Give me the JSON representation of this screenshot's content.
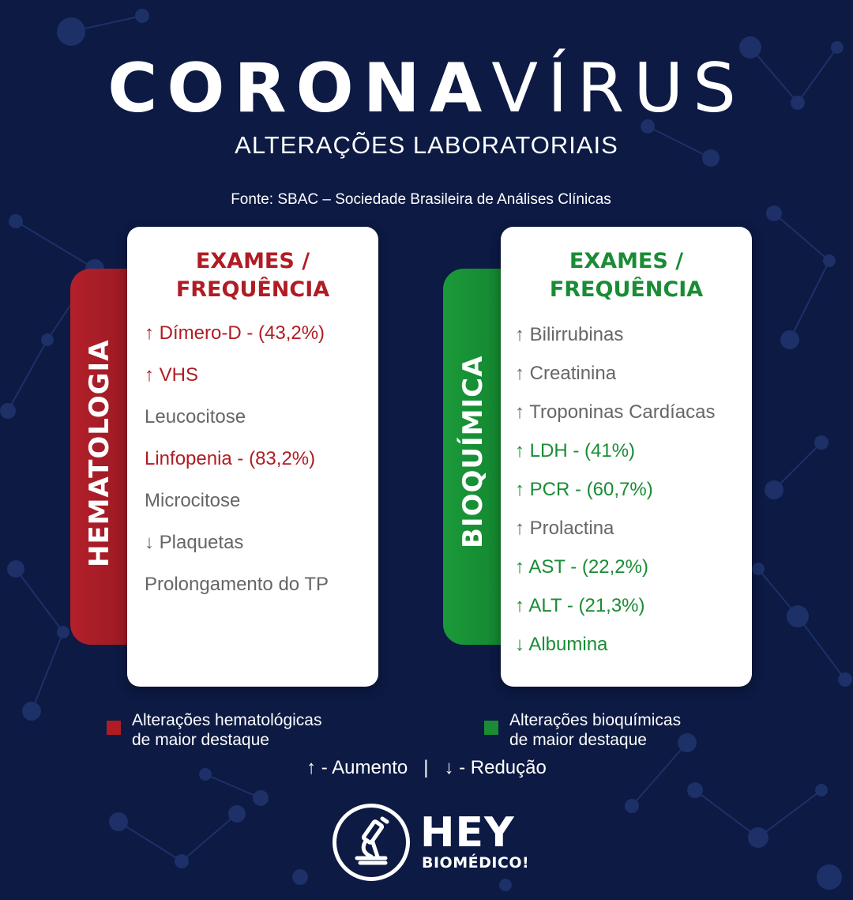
{
  "header": {
    "title_bold": "CORONA",
    "title_light": "VÍRUS",
    "subtitle": "ALTERAÇÕES LABORATORIAIS",
    "source": "Fonte: SBAC – Sociedade Brasileira de Análises Clínicas"
  },
  "hematologia": {
    "label": "HEMATOLOGIA",
    "heading_line1": "EXAMES /",
    "heading_line2": "FREQUÊNCIA",
    "items": [
      {
        "text": "↑ Dímero-D - (43,2%)",
        "highlight": true
      },
      {
        "text": "↑ VHS",
        "highlight": true
      },
      {
        "text": "Leucocitose",
        "highlight": false
      },
      {
        "text": "Linfopenia - (83,2%)",
        "highlight": true
      },
      {
        "text": "Microcitose",
        "highlight": false
      },
      {
        "text": "↓ Plaquetas",
        "highlight": false
      },
      {
        "text": "Prolongamento do TP",
        "highlight": false
      }
    ],
    "legend": [
      "Alterações hematológicas",
      "de maior destaque"
    ],
    "color": "#b01c24"
  },
  "bioquimica": {
    "label": "BIOQUÍMICA",
    "heading_line1": "EXAMES /",
    "heading_line2": "FREQUÊNCIA",
    "items": [
      {
        "text": "↑ Bilirrubinas",
        "highlight": false
      },
      {
        "text": "↑ Creatinina",
        "highlight": false
      },
      {
        "text": "↑ Troponinas Cardíacas",
        "highlight": false
      },
      {
        "text": "↑ LDH - (41%)",
        "highlight": true
      },
      {
        "text": "↑ PCR - (60,7%)",
        "highlight": true
      },
      {
        "text": "↑ Prolactina",
        "highlight": false
      },
      {
        "text": "↑ AST - (22,2%)",
        "highlight": true
      },
      {
        "text": "↑ ALT - (21,3%)",
        "highlight": true
      },
      {
        "text": "↓ Albumina",
        "highlight": true
      }
    ],
    "legend": [
      "Alterações bioquímicas",
      "de maior destaque"
    ],
    "color": "#1a8c35"
  },
  "key": {
    "text": "↑ - Aumento   |   ↓ - Redução"
  },
  "logo": {
    "icon": "microscope-icon",
    "word": "HEY",
    "sub": "BIOMÉDICO!"
  },
  "colors": {
    "background": "#0c1a44",
    "red": "#b01c24",
    "green": "#1a8c35"
  }
}
